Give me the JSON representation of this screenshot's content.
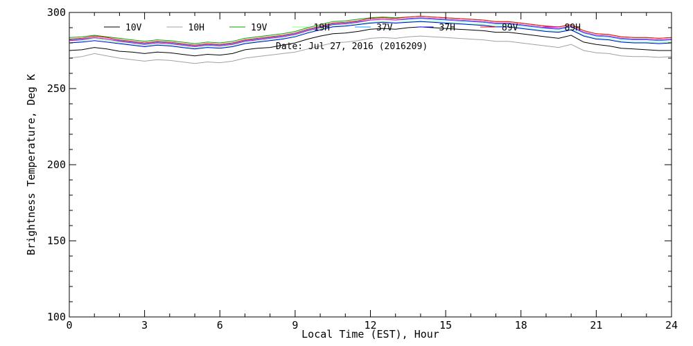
{
  "chart_data": {
    "type": "line",
    "xlabel": "Local Time (EST), Hour",
    "ylabel": "Brightness Temperature, Deg K",
    "annotation": "Date: Jul 27, 2016 (2016209)",
    "xlim": [
      0,
      24
    ],
    "ylim": [
      100,
      300
    ],
    "x_ticks": [
      "0",
      "3",
      "6",
      "9",
      "12",
      "15",
      "18",
      "21",
      "24"
    ],
    "y_ticks": [
      "100",
      "150",
      "200",
      "250",
      "300"
    ],
    "grid": false,
    "legend_position": "top",
    "x": [
      0,
      0.5,
      1,
      1.5,
      2,
      2.5,
      3,
      3.5,
      4,
      4.5,
      5,
      5.5,
      6,
      6.5,
      7,
      7.5,
      8,
      8.5,
      9,
      9.5,
      10,
      10.5,
      11,
      11.5,
      12,
      12.5,
      13,
      13.5,
      14,
      14.5,
      15,
      15.5,
      16,
      16.5,
      17,
      17.5,
      18,
      18.5,
      19,
      19.5,
      20,
      20.5,
      21,
      21.5,
      22,
      22.5,
      23,
      23.5,
      24
    ],
    "series": [
      {
        "name": "10V",
        "color": "#000000",
        "values": [
          275,
          275.5,
          277,
          276,
          274.5,
          274,
          273,
          274,
          273.5,
          272.5,
          271.5,
          272.5,
          272,
          273,
          275.5,
          276.5,
          277,
          278.5,
          280,
          282.5,
          284.5,
          286,
          286.5,
          287.5,
          289,
          289.5,
          289,
          290,
          290.5,
          290,
          289.5,
          289,
          288.5,
          288,
          287,
          287,
          286,
          285,
          284,
          283,
          285,
          280.5,
          279,
          278,
          276.5,
          276,
          275.5,
          275,
          275
        ]
      },
      {
        "name": "10H",
        "color": "#a0a0a0",
        "values": [
          270,
          271,
          273,
          271.5,
          270,
          269,
          268,
          269,
          268.5,
          267.5,
          266.5,
          267.5,
          267,
          268,
          270,
          271,
          272,
          273,
          274,
          276,
          278,
          280,
          280.5,
          281.5,
          283,
          283.5,
          283,
          284,
          284.5,
          284,
          283.5,
          283,
          282.5,
          282,
          281,
          281,
          280,
          279,
          278,
          277,
          279,
          275,
          273.5,
          273,
          271.5,
          271,
          271,
          270.5,
          271
        ]
      },
      {
        "name": "19V",
        "color": "#00a000",
        "values": [
          283.5,
          284,
          285,
          284,
          283,
          282,
          281,
          282,
          281.5,
          280.5,
          279.5,
          280.5,
          280,
          281,
          283,
          284,
          285,
          286,
          287.5,
          290,
          292,
          294,
          294.5,
          295.5,
          296.5,
          297,
          296.5,
          297,
          297.5,
          297,
          296.5,
          296,
          295.5,
          295,
          294,
          294,
          293,
          292,
          291,
          290.5,
          292,
          288,
          286,
          285.5,
          284,
          283.5,
          283.5,
          283,
          283.5
        ]
      },
      {
        "name": "19H",
        "color": "#80ff80",
        "values": [
          280,
          281,
          283,
          281.5,
          280,
          279,
          278,
          279,
          278.5,
          277.5,
          276.5,
          277.5,
          277,
          278,
          280,
          281,
          282,
          283,
          284.5,
          287,
          289,
          291,
          291.5,
          292.5,
          293.5,
          294,
          293.5,
          294,
          294.5,
          294,
          293.5,
          293,
          292.5,
          292,
          291,
          291,
          290,
          289,
          288,
          287.5,
          289,
          285,
          283,
          282.5,
          281,
          280.5,
          280.5,
          280,
          280.5
        ]
      },
      {
        "name": "37V",
        "color": "#00a0ff",
        "values": [
          282,
          282.5,
          283.5,
          282.5,
          281.5,
          280.5,
          279.5,
          280.5,
          280,
          279,
          278,
          279,
          278.5,
          279.5,
          281.5,
          282.5,
          283.5,
          284.5,
          286,
          288.5,
          290.5,
          292.5,
          293,
          294,
          295,
          295.5,
          295,
          295.5,
          296,
          295.5,
          295,
          294.5,
          294,
          293.5,
          292.5,
          292.5,
          291.5,
          290.5,
          289.5,
          289,
          290.5,
          286.5,
          284.5,
          284,
          282.5,
          282,
          282,
          281.5,
          282
        ]
      },
      {
        "name": "37H",
        "color": "#0000ff",
        "values": [
          280,
          280.5,
          281.5,
          280.5,
          279.5,
          278.5,
          277.5,
          278.5,
          278,
          277,
          276,
          277,
          276.5,
          277.5,
          279.5,
          280.5,
          281.5,
          282.5,
          284,
          286.5,
          288.5,
          290.5,
          291,
          292,
          293,
          293.5,
          293,
          293.5,
          294,
          293.5,
          293,
          292.5,
          292,
          291.5,
          290.5,
          290.5,
          289.5,
          288.5,
          287.5,
          287,
          288.5,
          284.5,
          282.5,
          282,
          280.5,
          280,
          280,
          279.5,
          280
        ]
      },
      {
        "name": "89V",
        "color": "#ff0000",
        "values": [
          282.5,
          283,
          284.5,
          283.5,
          282,
          281,
          280,
          281,
          280.5,
          279.5,
          278.5,
          279.5,
          279,
          280,
          282,
          283,
          284,
          285,
          286.5,
          289,
          291,
          293,
          293.5,
          294.5,
          296,
          296.5,
          296,
          297,
          297.5,
          297,
          296.5,
          296,
          295.5,
          295,
          294,
          294,
          293,
          292,
          291,
          290.5,
          292,
          288,
          286,
          285.5,
          284,
          283.5,
          283.5,
          283,
          283.5
        ]
      },
      {
        "name": "89H",
        "color": "#d000d0",
        "values": [
          281.5,
          282,
          283.5,
          282.5,
          281,
          280,
          279,
          280,
          279.5,
          278.5,
          277.5,
          278.5,
          278,
          279,
          281,
          282,
          283,
          284,
          285.5,
          288,
          290,
          292,
          292.5,
          293.5,
          295,
          295.5,
          295,
          296,
          296.5,
          296,
          295.5,
          295,
          294.5,
          294,
          293,
          293,
          292,
          291,
          290,
          289.5,
          291,
          287,
          285,
          284.5,
          283,
          282.5,
          282.5,
          282,
          282.5
        ]
      }
    ]
  }
}
